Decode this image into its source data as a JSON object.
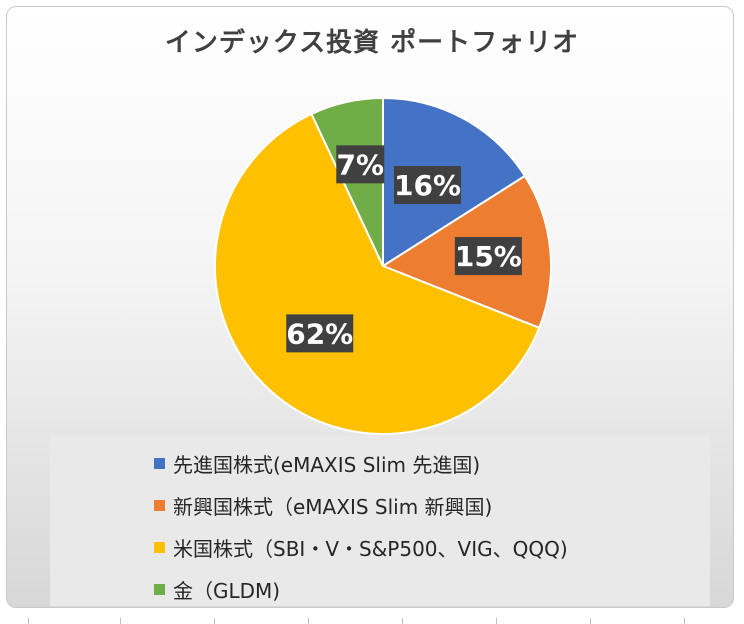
{
  "chart_data": {
    "type": "pie",
    "title": "インデックス投資 ポートフォリオ",
    "series": [
      {
        "name": "",
        "categories": [
          "先進国株式(eMAXIS Slim 先進国)",
          "新興国株式（eMAXIS Slim 新興国)",
          "米国株式（SBI・V・S&P500、VIG、QQQ)",
          "金（GLDM)"
        ],
        "values": [
          16,
          15,
          62,
          7
        ],
        "labels": [
          "16%",
          "15%",
          "62%",
          "7%"
        ]
      }
    ],
    "colors": [
      "#4472c4",
      "#ed7d31",
      "#ffc000",
      "#70ad47"
    ],
    "legend_position": "bottom"
  }
}
